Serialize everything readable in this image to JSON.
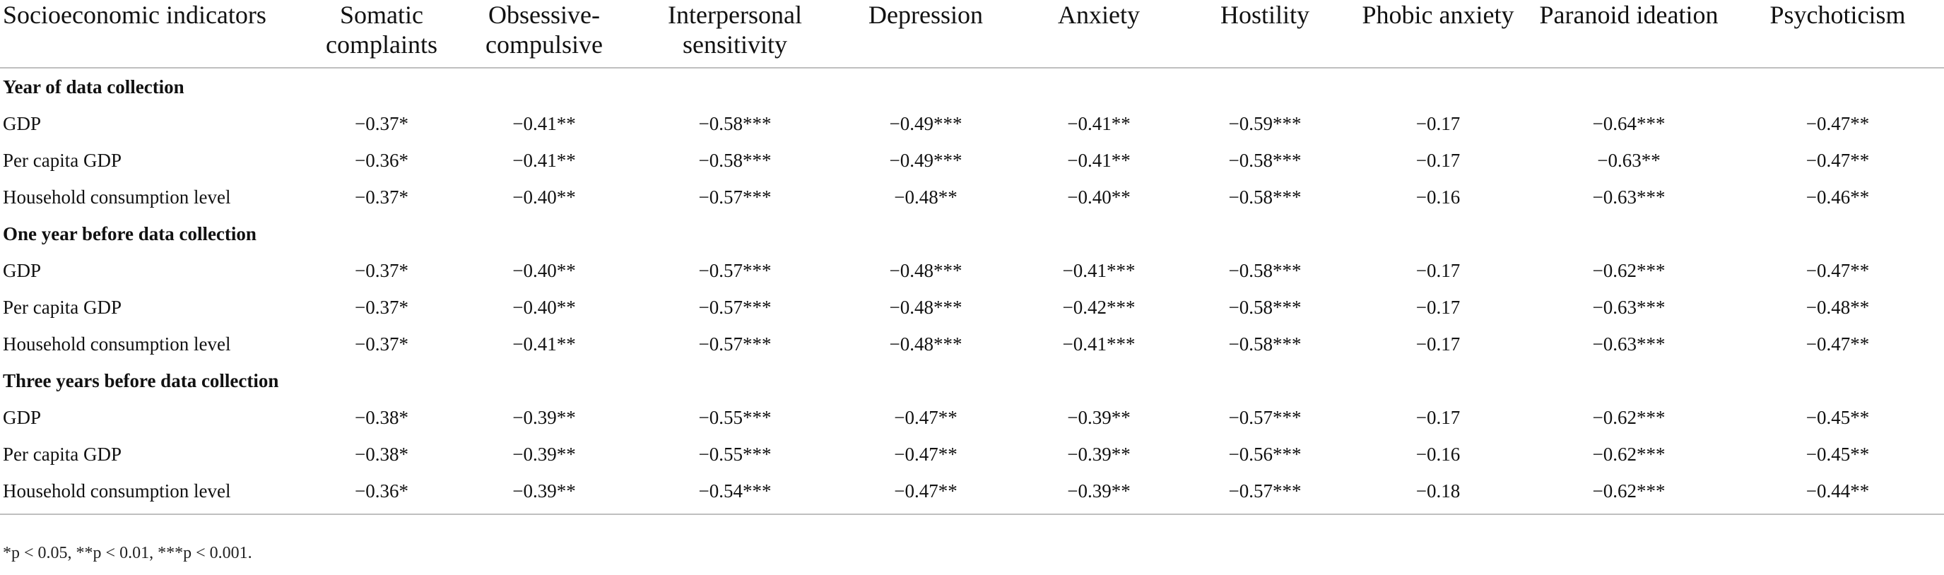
{
  "table": {
    "headers": [
      "Socioeconomic indicators",
      "Somatic complaints",
      "Obsessive-compulsive",
      "Interpersonal sensitivity",
      "Depression",
      "Anxiety",
      "Hostility",
      "Phobic anxiety",
      "Paranoid ideation",
      "Psychoticism"
    ],
    "groups": [
      {
        "title": "Year of data collection",
        "rows": [
          {
            "label": "GDP",
            "values": [
              "−0.37*",
              "−0.41**",
              "−0.58***",
              "−0.49***",
              "−0.41**",
              "−0.59***",
              "−0.17",
              "−0.64***",
              "−0.47**"
            ]
          },
          {
            "label": "Per capita GDP",
            "values": [
              "−0.36*",
              "−0.41**",
              "−0.58***",
              "−0.49***",
              "−0.41**",
              "−0.58***",
              "−0.17",
              "−0.63**",
              "−0.47**"
            ]
          },
          {
            "label": "Household consumption level",
            "values": [
              "−0.37*",
              "−0.40**",
              "−0.57***",
              "−0.48**",
              "−0.40**",
              "−0.58***",
              "−0.16",
              "−0.63***",
              "−0.46**"
            ]
          }
        ]
      },
      {
        "title": "One year before data collection",
        "rows": [
          {
            "label": "GDP",
            "values": [
              "−0.37*",
              "−0.40**",
              "−0.57***",
              "−0.48***",
              "−0.41***",
              "−0.58***",
              "−0.17",
              "−0.62***",
              "−0.47**"
            ]
          },
          {
            "label": "Per capita GDP",
            "values": [
              "−0.37*",
              "−0.40**",
              "−0.57***",
              "−0.48***",
              "−0.42***",
              "−0.58***",
              "−0.17",
              "−0.63***",
              "−0.48**"
            ]
          },
          {
            "label": "Household consumption level",
            "values": [
              "−0.37*",
              "−0.41**",
              "−0.57***",
              "−0.48***",
              "−0.41***",
              "−0.58***",
              "−0.17",
              "−0.63***",
              "−0.47**"
            ]
          }
        ]
      },
      {
        "title": "Three years before data collection",
        "rows": [
          {
            "label": "GDP",
            "values": [
              "−0.38*",
              "−0.39**",
              "−0.55***",
              "−0.47**",
              "−0.39**",
              "−0.57***",
              "−0.17",
              "−0.62***",
              "−0.45**"
            ]
          },
          {
            "label": "Per capita GDP",
            "values": [
              "−0.38*",
              "−0.39**",
              "−0.55***",
              "−0.47**",
              "−0.39**",
              "−0.56***",
              "−0.16",
              "−0.62***",
              "−0.45**"
            ]
          },
          {
            "label": "Household consumption level",
            "values": [
              "−0.36*",
              "−0.39**",
              "−0.54***",
              "−0.47**",
              "−0.39**",
              "−0.57***",
              "−0.18",
              "−0.62***",
              "−0.44**"
            ]
          }
        ]
      }
    ]
  },
  "footnote": "*p < 0.05, **p < 0.01, ***p < 0.001."
}
